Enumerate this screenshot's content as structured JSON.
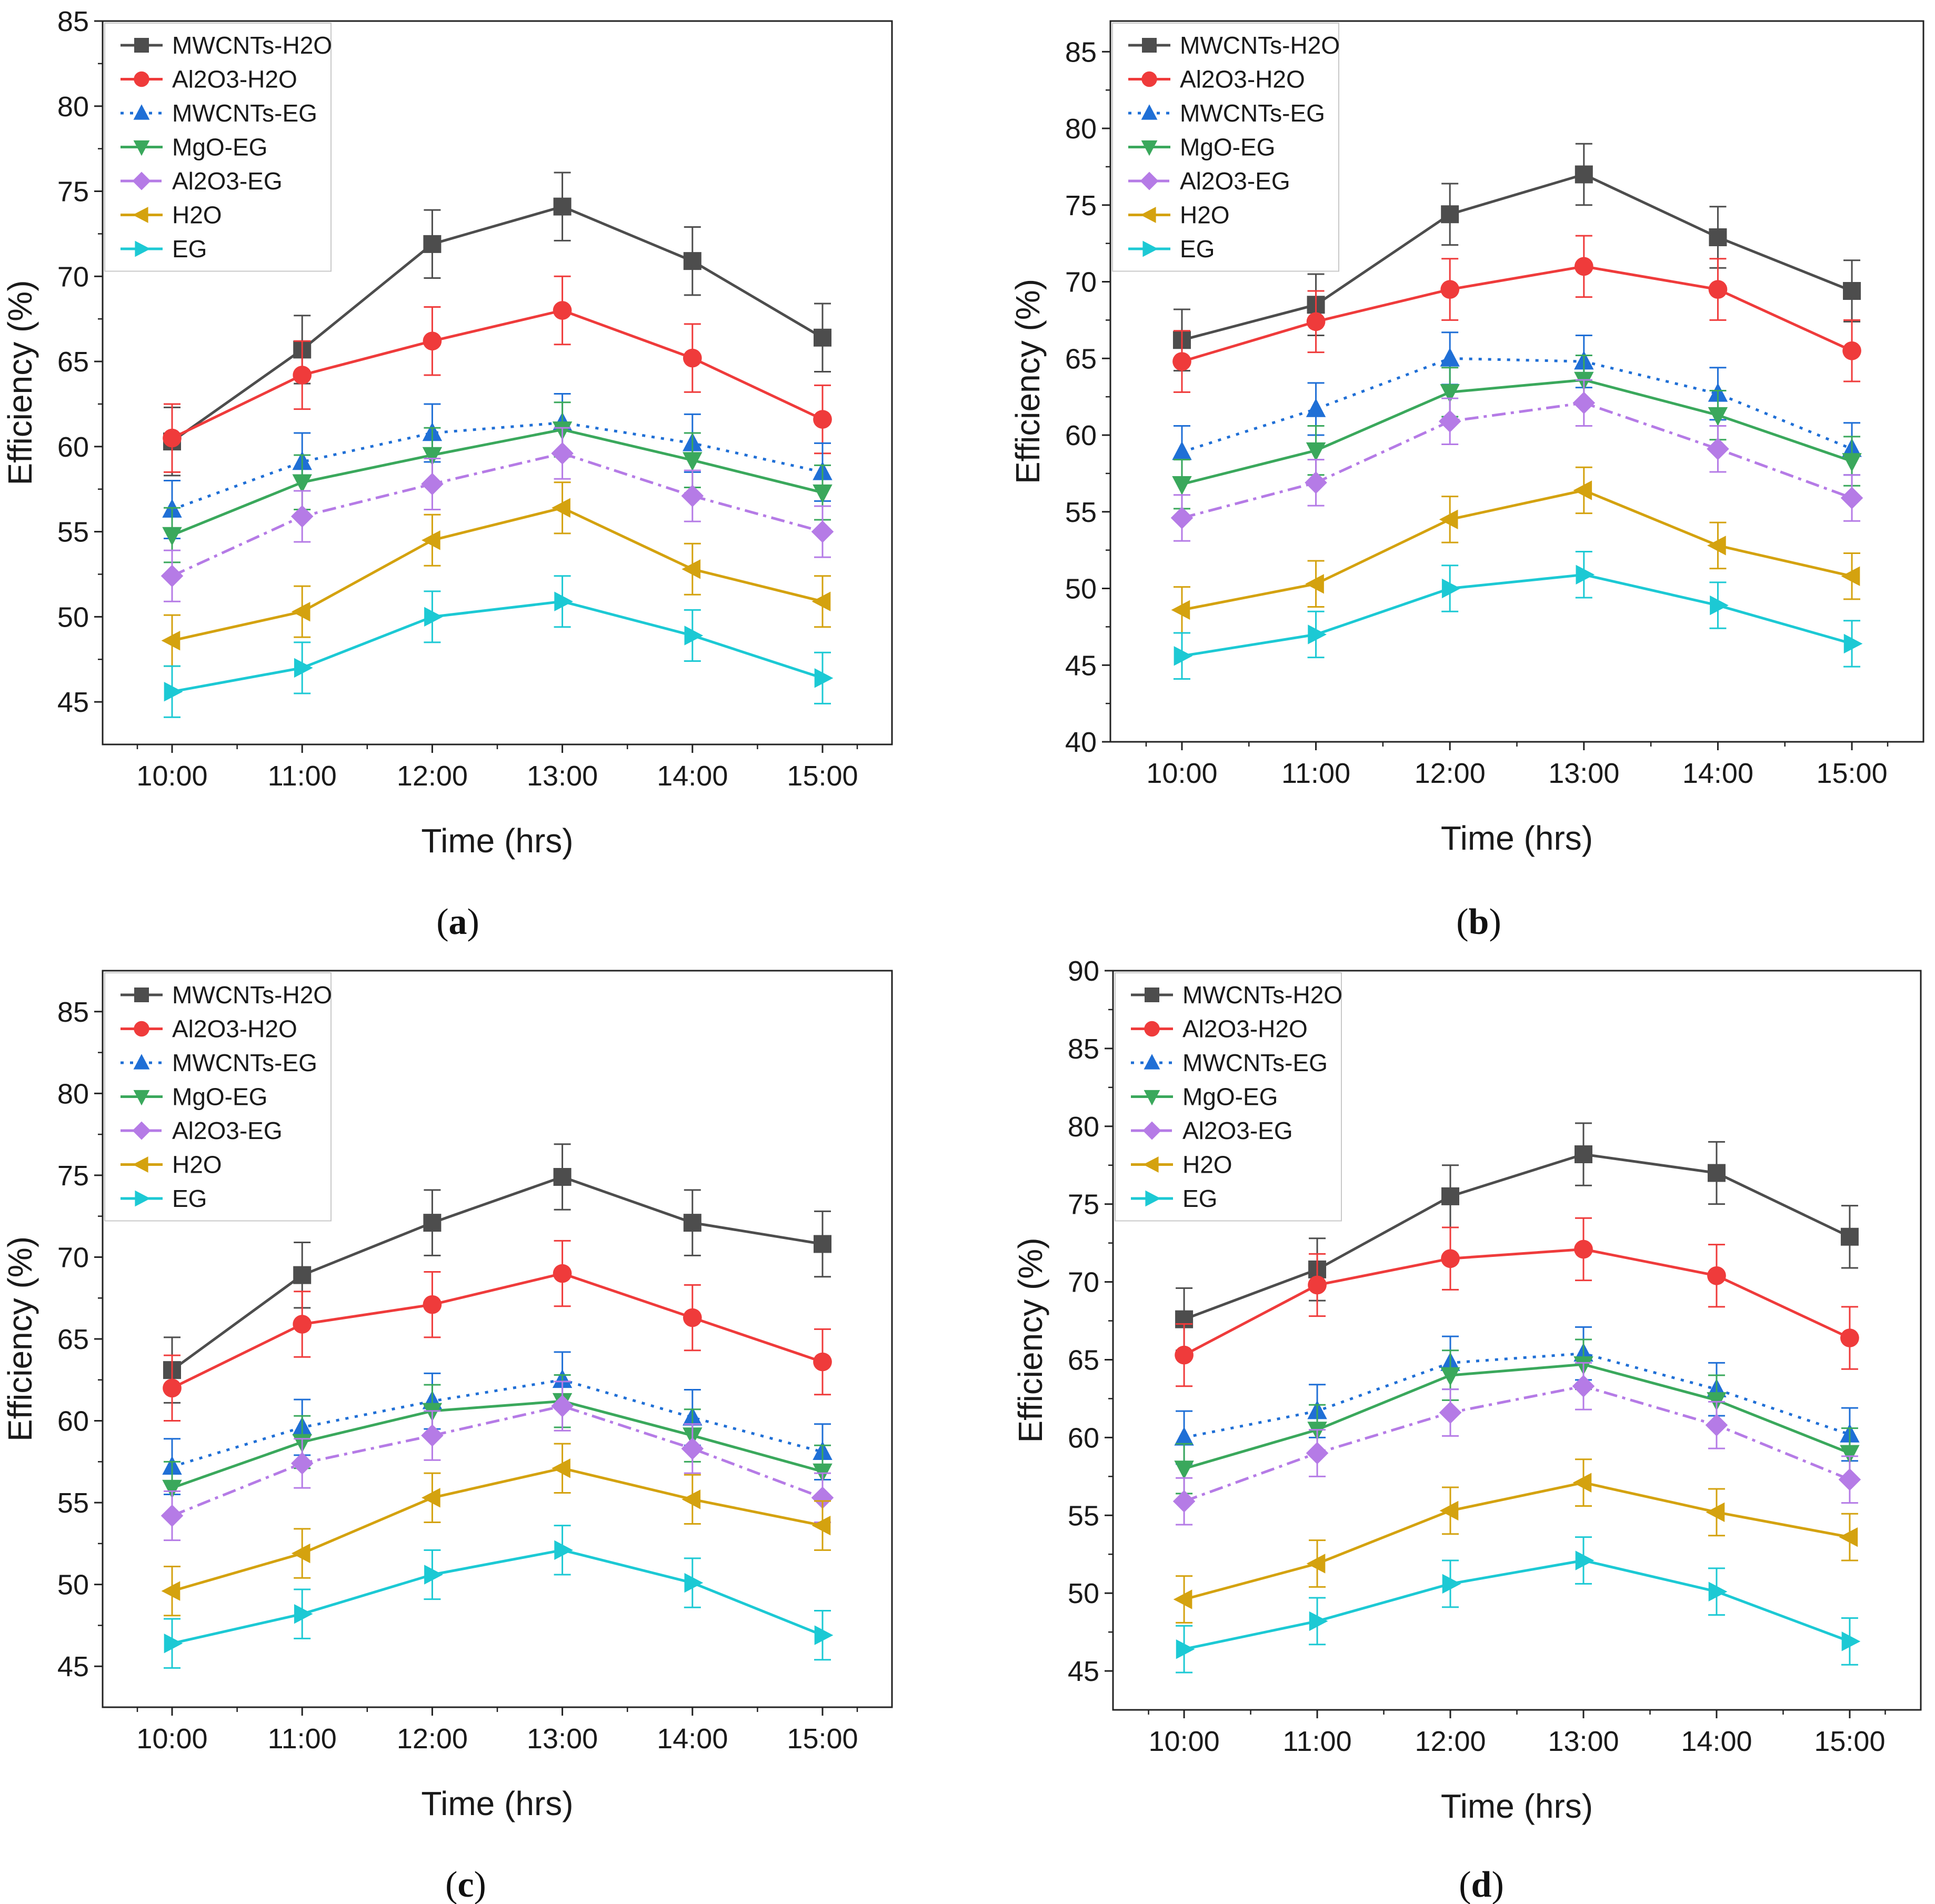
{
  "chart_data": [
    {
      "panel_label": "a",
      "type": "line",
      "x_categories": [
        "10:00",
        "11:00",
        "12:00",
        "13:00",
        "14:00",
        "15:00"
      ],
      "xlabel": "Time (hrs)",
      "ylabel": "Efficiency (%)",
      "ylim": [
        42.5,
        85
      ],
      "yticks": [
        45,
        50,
        55,
        60,
        65,
        70,
        75,
        80,
        85
      ],
      "legend_position": "top-left",
      "grid": false,
      "series": [
        {
          "name": "MWCNTs-H2O",
          "values": [
            60.3,
            65.7,
            71.9,
            74.1,
            70.9,
            66.4
          ]
        },
        {
          "name": "Al2O3-H2O",
          "values": [
            60.5,
            64.2,
            66.2,
            68.0,
            65.2,
            61.6
          ]
        },
        {
          "name": "MWCNTs-EG",
          "values": [
            56.3,
            59.1,
            60.8,
            61.4,
            60.2,
            58.5
          ]
        },
        {
          "name": "MgO-EG",
          "values": [
            54.8,
            57.9,
            59.5,
            61.0,
            59.2,
            57.3
          ]
        },
        {
          "name": "Al2O3-EG",
          "values": [
            52.4,
            55.9,
            57.8,
            59.6,
            57.1,
            55.0
          ]
        },
        {
          "name": "H2O",
          "values": [
            48.6,
            50.3,
            54.5,
            56.4,
            52.8,
            50.9
          ]
        },
        {
          "name": "EG",
          "values": [
            45.6,
            47.0,
            50.0,
            50.9,
            48.9,
            46.4
          ]
        }
      ]
    },
    {
      "panel_label": "b",
      "type": "line",
      "x_categories": [
        "10:00",
        "11:00",
        "12:00",
        "13:00",
        "14:00",
        "15:00"
      ],
      "xlabel": "Time (hrs)",
      "ylabel": "Efficiency (%)",
      "ylim": [
        40,
        87
      ],
      "yticks": [
        40,
        45,
        50,
        55,
        60,
        65,
        70,
        75,
        80,
        85
      ],
      "legend_position": "top-left",
      "grid": false,
      "series": [
        {
          "name": "MWCNTs-H2O",
          "values": [
            66.2,
            68.5,
            74.4,
            77.0,
            72.9,
            69.4
          ]
        },
        {
          "name": "Al2O3-H2O",
          "values": [
            64.8,
            67.4,
            69.5,
            71.0,
            69.5,
            65.5
          ]
        },
        {
          "name": "MWCNTs-EG",
          "values": [
            58.9,
            61.7,
            65.0,
            64.8,
            62.7,
            59.1
          ]
        },
        {
          "name": "MgO-EG",
          "values": [
            56.8,
            59.0,
            62.8,
            63.6,
            61.3,
            58.3
          ]
        },
        {
          "name": "Al2O3-EG",
          "values": [
            54.6,
            56.9,
            60.9,
            62.1,
            59.1,
            55.9
          ]
        },
        {
          "name": "H2O",
          "values": [
            48.6,
            50.3,
            54.5,
            56.4,
            52.8,
            50.8
          ]
        },
        {
          "name": "EG",
          "values": [
            45.6,
            47.0,
            50.0,
            50.9,
            48.9,
            46.4
          ]
        }
      ]
    },
    {
      "panel_label": "c",
      "type": "line",
      "x_categories": [
        "10:00",
        "11:00",
        "12:00",
        "13:00",
        "14:00",
        "15:00"
      ],
      "xlabel": "Time (hrs)",
      "ylabel": "Efficiency (%)",
      "ylim": [
        42.5,
        87.5
      ],
      "yticks": [
        45,
        50,
        55,
        60,
        65,
        70,
        75,
        80,
        85
      ],
      "legend_position": "top-left",
      "grid": false,
      "series": [
        {
          "name": "MWCNTs-H2O",
          "values": [
            63.1,
            68.9,
            72.1,
            74.9,
            72.1,
            70.8
          ]
        },
        {
          "name": "Al2O3-H2O",
          "values": [
            62.0,
            65.9,
            67.1,
            69.0,
            66.3,
            63.6
          ]
        },
        {
          "name": "MWCNTs-EG",
          "values": [
            57.2,
            59.6,
            61.2,
            62.5,
            60.2,
            58.1
          ]
        },
        {
          "name": "MgO-EG",
          "values": [
            55.9,
            58.7,
            60.6,
            61.2,
            59.1,
            56.9
          ]
        },
        {
          "name": "Al2O3-EG",
          "values": [
            54.2,
            57.4,
            59.1,
            60.9,
            58.3,
            55.3
          ]
        },
        {
          "name": "H2O",
          "values": [
            49.6,
            51.9,
            55.3,
            57.1,
            55.2,
            53.6
          ]
        },
        {
          "name": "EG",
          "values": [
            46.4,
            48.2,
            50.6,
            52.1,
            50.1,
            46.9
          ]
        }
      ]
    },
    {
      "panel_label": "d",
      "type": "line",
      "x_categories": [
        "10:00",
        "11:00",
        "12:00",
        "13:00",
        "14:00",
        "15:00"
      ],
      "xlabel": "Time (hrs)",
      "ylabel": "Efficiency (%)",
      "ylim": [
        42.5,
        90
      ],
      "yticks": [
        45,
        50,
        55,
        60,
        65,
        70,
        75,
        80,
        85,
        90
      ],
      "legend_position": "top-left",
      "grid": false,
      "series": [
        {
          "name": "MWCNTs-H2O",
          "values": [
            67.6,
            70.8,
            75.5,
            78.2,
            77.0,
            72.9
          ]
        },
        {
          "name": "Al2O3-H2O",
          "values": [
            65.3,
            69.8,
            71.5,
            72.1,
            70.4,
            66.4
          ]
        },
        {
          "name": "MWCNTs-EG",
          "values": [
            60.0,
            61.7,
            64.8,
            65.4,
            63.1,
            60.2
          ]
        },
        {
          "name": "MgO-EG",
          "values": [
            58.0,
            60.5,
            64.0,
            64.7,
            62.4,
            59.0
          ]
        },
        {
          "name": "Al2O3-EG",
          "values": [
            55.9,
            59.0,
            61.6,
            63.3,
            60.8,
            57.3
          ]
        },
        {
          "name": "H2O",
          "values": [
            49.6,
            51.9,
            55.3,
            57.1,
            55.2,
            53.6
          ]
        },
        {
          "name": "EG",
          "values": [
            46.4,
            48.2,
            50.6,
            52.1,
            50.1,
            46.9
          ]
        }
      ]
    }
  ],
  "series_styles": [
    {
      "name": "MWCNTs-H2O",
      "color": "#4d4d4d",
      "marker": "square",
      "dash": "solid"
    },
    {
      "name": "Al2O3-H2O",
      "color": "#ef3b3b",
      "marker": "circle",
      "dash": "solid"
    },
    {
      "name": "MWCNTs-EG",
      "color": "#1f6fd6",
      "marker": "triangle-up",
      "dash": "dotted"
    },
    {
      "name": "MgO-EG",
      "color": "#3aa85c",
      "marker": "triangle-down",
      "dash": "solid"
    },
    {
      "name": "Al2O3-EG",
      "color": "#b57be6",
      "marker": "diamond",
      "dash": "dashdot"
    },
    {
      "name": "H2O",
      "color": "#d4a20f",
      "marker": "triangle-left",
      "dash": "solid"
    },
    {
      "name": "EG",
      "color": "#1cc9d4",
      "marker": "triangle-right",
      "dash": "solid"
    }
  ]
}
